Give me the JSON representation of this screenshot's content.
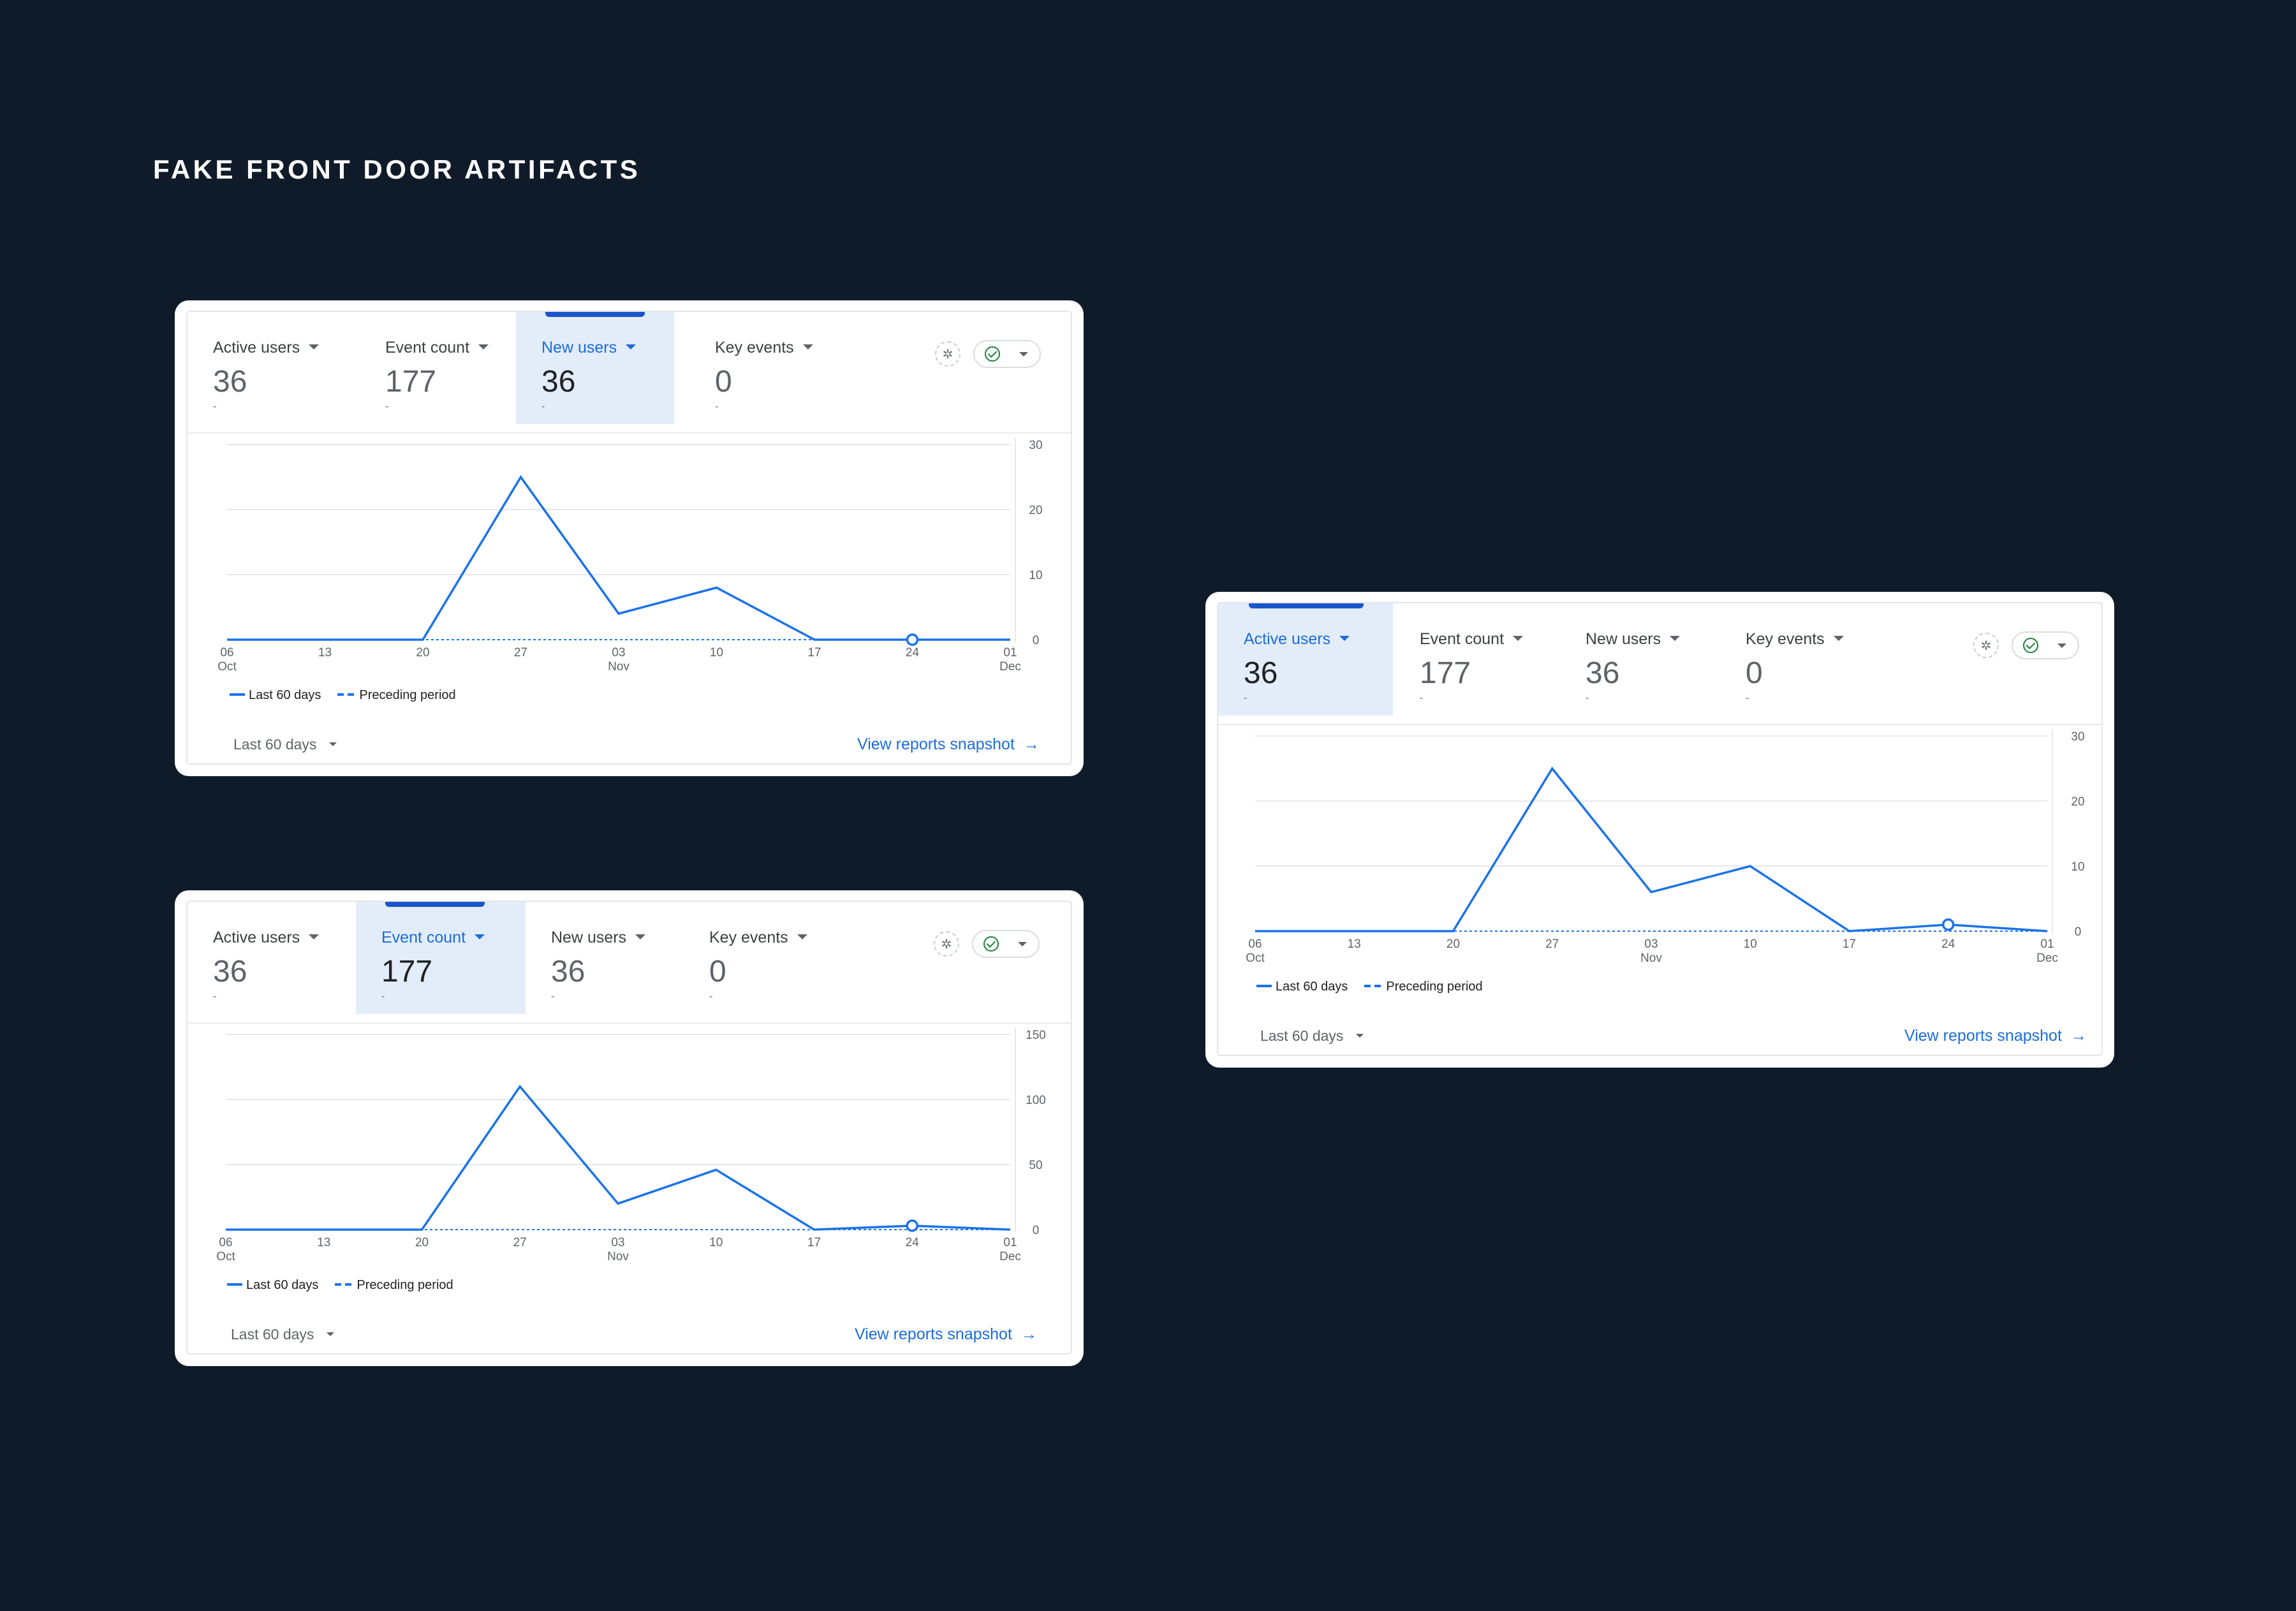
{
  "page": {
    "title": "FAKE FRONT DOOR ARTIFACTS"
  },
  "colors": {
    "background": "#101b2a",
    "accent": "#1a73e8",
    "selected_tab_bg": "#e3ecf9",
    "check_green": "#188038"
  },
  "icons": {
    "insights": "insights-icon",
    "compare_check": "check-circle-icon",
    "dropdown": "chevron-down-icon",
    "arrow": "arrow-right-icon"
  },
  "cards": [
    {
      "selected_tab": 2,
      "tabs": [
        {
          "label": "Active users",
          "value": "36",
          "delta": "-"
        },
        {
          "label": "Event count",
          "value": "177",
          "delta": "-"
        },
        {
          "label": "New users",
          "value": "36",
          "delta": "-"
        },
        {
          "label": "Key events",
          "value": "0",
          "delta": "-"
        }
      ],
      "legend": {
        "current": "Last 60 days",
        "previous": "Preceding period"
      },
      "range_label": "Last 60 days",
      "snapshot_link": "View reports snapshot"
    },
    {
      "selected_tab": 1,
      "tabs": [
        {
          "label": "Active users",
          "value": "36",
          "delta": "-"
        },
        {
          "label": "Event count",
          "value": "177",
          "delta": "-"
        },
        {
          "label": "New users",
          "value": "36",
          "delta": "-"
        },
        {
          "label": "Key events",
          "value": "0",
          "delta": "-"
        }
      ],
      "legend": {
        "current": "Last 60 days",
        "previous": "Preceding period"
      },
      "range_label": "Last 60 days",
      "snapshot_link": "View reports snapshot"
    },
    {
      "selected_tab": 0,
      "tabs": [
        {
          "label": "Active users",
          "value": "36",
          "delta": "-"
        },
        {
          "label": "Event count",
          "value": "177",
          "delta": "-"
        },
        {
          "label": "New users",
          "value": "36",
          "delta": "-"
        },
        {
          "label": "Key events",
          "value": "0",
          "delta": "-"
        }
      ],
      "legend": {
        "current": "Last 60 days",
        "previous": "Preceding period"
      },
      "range_label": "Last 60 days",
      "snapshot_link": "View reports snapshot"
    }
  ],
  "chart_data": [
    {
      "type": "line",
      "x": [
        "06\nOct",
        "13",
        "20",
        "27",
        "03\nNov",
        "10",
        "17",
        "24",
        "01\nDec"
      ],
      "ylim": [
        0,
        30
      ],
      "yticks": [
        0,
        10,
        20,
        30
      ],
      "series": [
        {
          "name": "Last 60 days",
          "values": [
            0,
            0,
            0,
            25,
            4,
            8,
            0,
            0,
            0
          ],
          "style": "solid"
        },
        {
          "name": "Preceding period",
          "values": [
            0,
            0,
            0,
            0,
            0,
            0,
            0,
            0,
            0
          ],
          "style": "dashed"
        }
      ],
      "highlight_index": 7,
      "grid": true,
      "legend": "bottom-left"
    },
    {
      "type": "line",
      "x": [
        "06\nOct",
        "13",
        "20",
        "27",
        "03\nNov",
        "10",
        "17",
        "24",
        "01\nDec"
      ],
      "ylim": [
        0,
        150
      ],
      "yticks": [
        0,
        50,
        100,
        150
      ],
      "series": [
        {
          "name": "Last 60 days",
          "values": [
            0,
            0,
            0,
            110,
            20,
            46,
            0,
            3,
            0
          ],
          "style": "solid"
        },
        {
          "name": "Preceding period",
          "values": [
            0,
            0,
            0,
            0,
            0,
            0,
            0,
            0,
            0
          ],
          "style": "dashed"
        }
      ],
      "highlight_index": 7,
      "grid": true,
      "legend": "bottom-left"
    },
    {
      "type": "line",
      "x": [
        "06\nOct",
        "13",
        "20",
        "27",
        "03\nNov",
        "10",
        "17",
        "24",
        "01\nDec"
      ],
      "ylim": [
        0,
        30
      ],
      "yticks": [
        0,
        10,
        20,
        30
      ],
      "series": [
        {
          "name": "Last 60 days",
          "values": [
            0,
            0,
            0,
            25,
            6,
            10,
            0,
            1,
            0
          ],
          "style": "solid"
        },
        {
          "name": "Preceding period",
          "values": [
            0,
            0,
            0,
            0,
            0,
            0,
            0,
            0,
            0
          ],
          "style": "dashed"
        }
      ],
      "highlight_index": 7,
      "grid": true,
      "legend": "bottom-left"
    }
  ]
}
